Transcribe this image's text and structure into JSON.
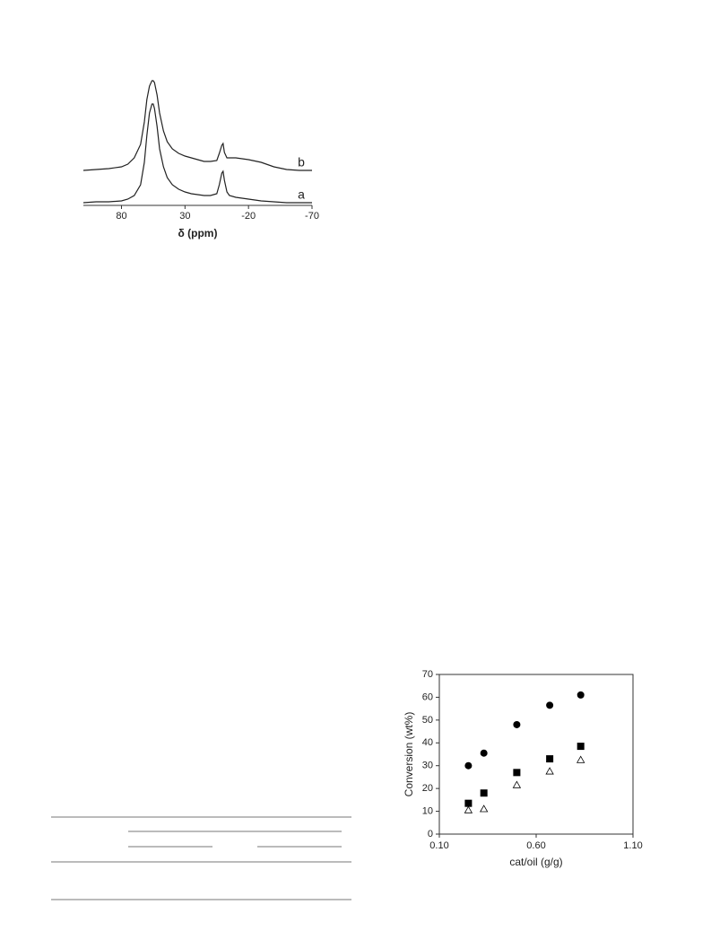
{
  "chart_data": [
    {
      "type": "line",
      "xlabel": "δ (ppm)",
      "x": [
        110,
        100,
        90,
        80,
        75,
        70,
        65,
        62,
        60,
        58,
        56,
        55,
        54,
        52,
        50,
        47,
        44,
        40,
        35,
        30,
        25,
        20,
        15,
        10,
        5,
        3,
        1,
        0,
        -1,
        -3,
        -5,
        -10,
        -20,
        -30,
        -40,
        -50,
        -60,
        -70
      ],
      "series": [
        {
          "name": "a",
          "color": "#222222",
          "values": [
            0,
            1,
            1,
            2,
            4,
            8,
            20,
            45,
            75,
            100,
            110,
            110,
            105,
            85,
            60,
            40,
            28,
            20,
            15,
            12,
            10,
            9,
            8,
            8,
            10,
            20,
            33,
            35,
            25,
            12,
            8,
            6,
            4,
            2,
            1,
            0,
            0,
            0
          ]
        },
        {
          "name": "b",
          "color": "#222222",
          "values": [
            36,
            37,
            38,
            40,
            43,
            50,
            65,
            90,
            115,
            130,
            136,
            136,
            134,
            120,
            100,
            80,
            68,
            60,
            55,
            52,
            50,
            48,
            46,
            46,
            47,
            55,
            64,
            66,
            56,
            50,
            50,
            50,
            48,
            45,
            40,
            37,
            36,
            36
          ]
        }
      ],
      "xlim": [
        110,
        -70
      ],
      "xticks": [
        80,
        30,
        -20,
        -70
      ],
      "ylim": [
        0,
        140
      ]
    },
    {
      "type": "scatter",
      "xlabel": "cat/oil (g/g)",
      "ylabel": "Conversion (wt%)",
      "x": [
        0.25,
        0.33,
        0.5,
        0.67,
        0.83
      ],
      "series": [
        {
          "marker": "circle",
          "color": "#000000",
          "values": [
            30,
            35.5,
            48,
            56.5,
            61
          ]
        },
        {
          "marker": "square",
          "color": "#000000",
          "values": [
            13.5,
            18,
            27,
            33,
            38.5
          ]
        },
        {
          "marker": "triangle",
          "color": "#000000",
          "values": [
            10.5,
            11,
            21.5,
            27.5,
            32.5
          ]
        }
      ],
      "xlim": [
        0.1,
        1.1
      ],
      "xticks": [
        {
          "value": 0.1,
          "label": "0.10"
        },
        {
          "value": 0.6,
          "label": "0.60"
        },
        {
          "value": 1.1,
          "label": "1.10"
        }
      ],
      "ylim": [
        0,
        70
      ],
      "yticks": [
        0,
        10,
        20,
        30,
        40,
        50,
        60,
        70
      ]
    }
  ]
}
